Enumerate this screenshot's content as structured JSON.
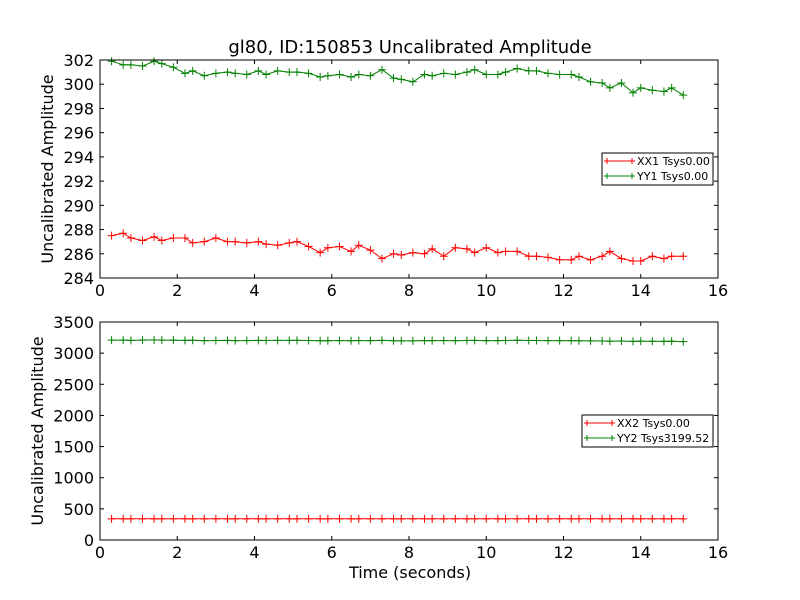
{
  "figure_title": "gl80, ID:150853 Uncalibrated Amplitude",
  "chart_data": [
    {
      "type": "line",
      "title": "gl80, ID:150853 Uncalibrated Amplitude",
      "xlabel": "",
      "ylabel": "Uncalibrated Amplitude",
      "xlim": [
        0,
        16
      ],
      "ylim": [
        284,
        302
      ],
      "xticks": [
        0,
        2,
        4,
        6,
        8,
        10,
        12,
        14,
        16
      ],
      "yticks": [
        284,
        286,
        288,
        290,
        292,
        294,
        296,
        298,
        300,
        302
      ],
      "legend_position": "center-right",
      "x": [
        0.3,
        0.6,
        0.8,
        1.1,
        1.4,
        1.6,
        1.9,
        2.2,
        2.4,
        2.7,
        3.0,
        3.3,
        3.5,
        3.8,
        4.1,
        4.3,
        4.6,
        4.9,
        5.1,
        5.4,
        5.7,
        5.9,
        6.2,
        6.5,
        6.7,
        7.0,
        7.3,
        7.6,
        7.8,
        8.1,
        8.4,
        8.6,
        8.9,
        9.2,
        9.5,
        9.7,
        10.0,
        10.3,
        10.5,
        10.8,
        11.1,
        11.3,
        11.6,
        11.9,
        12.2,
        12.4,
        12.7,
        13.0,
        13.2,
        13.5,
        13.8,
        14.0,
        14.3,
        14.6,
        14.8,
        15.1
      ],
      "series": [
        {
          "name": "XX1 Tsys0.00",
          "color": "#ff0000",
          "values": [
            287.5,
            287.7,
            287.3,
            287.1,
            287.4,
            287.1,
            287.3,
            287.3,
            286.9,
            287.0,
            287.3,
            287.0,
            287.0,
            286.9,
            287.0,
            286.8,
            286.7,
            286.9,
            287.0,
            286.6,
            286.1,
            286.5,
            286.6,
            286.2,
            286.7,
            286.3,
            285.6,
            286.0,
            285.9,
            286.1,
            286.0,
            286.4,
            285.8,
            286.5,
            286.4,
            286.1,
            286.5,
            286.1,
            286.2,
            286.2,
            285.8,
            285.8,
            285.7,
            285.5,
            285.5,
            285.8,
            285.5,
            285.8,
            286.2,
            285.6,
            285.4,
            285.4,
            285.8,
            285.6,
            285.8,
            285.8
          ]
        },
        {
          "name": "YY1 Tsys0.00",
          "color": "#008000",
          "values": [
            301.9,
            301.6,
            301.6,
            301.5,
            301.9,
            301.7,
            301.4,
            300.9,
            301.1,
            300.7,
            300.9,
            301.0,
            300.9,
            300.8,
            301.1,
            300.8,
            301.1,
            301.0,
            301.0,
            300.9,
            300.6,
            300.7,
            300.8,
            300.6,
            300.8,
            300.7,
            301.2,
            300.5,
            300.4,
            300.2,
            300.8,
            300.7,
            300.9,
            300.8,
            301.0,
            301.2,
            300.8,
            300.8,
            301.0,
            301.3,
            301.1,
            301.1,
            300.9,
            300.8,
            300.8,
            300.6,
            300.2,
            300.1,
            299.7,
            300.1,
            299.3,
            299.7,
            299.5,
            299.4,
            299.7,
            299.1
          ]
        }
      ]
    },
    {
      "type": "line",
      "title": "",
      "xlabel": "Time (seconds)",
      "ylabel": "Uncalibrated Amplitude",
      "xlim": [
        0,
        16
      ],
      "ylim": [
        0,
        3500
      ],
      "xticks": [
        0,
        2,
        4,
        6,
        8,
        10,
        12,
        14,
        16
      ],
      "yticks": [
        0,
        500,
        1000,
        1500,
        2000,
        2500,
        3000,
        3500
      ],
      "legend_position": "center-right",
      "x": [
        0.3,
        0.6,
        0.8,
        1.1,
        1.4,
        1.6,
        1.9,
        2.2,
        2.4,
        2.7,
        3.0,
        3.3,
        3.5,
        3.8,
        4.1,
        4.3,
        4.6,
        4.9,
        5.1,
        5.4,
        5.7,
        5.9,
        6.2,
        6.5,
        6.7,
        7.0,
        7.3,
        7.6,
        7.8,
        8.1,
        8.4,
        8.6,
        8.9,
        9.2,
        9.5,
        9.7,
        10.0,
        10.3,
        10.5,
        10.8,
        11.1,
        11.3,
        11.6,
        11.9,
        12.2,
        12.4,
        12.7,
        13.0,
        13.2,
        13.5,
        13.8,
        14.0,
        14.3,
        14.6,
        14.8,
        15.1
      ],
      "series": [
        {
          "name": "XX2 Tsys0.00",
          "color": "#ff0000",
          "values": [
            340,
            340,
            340,
            340,
            340,
            340,
            340,
            340,
            340,
            340,
            340,
            340,
            340,
            340,
            340,
            340,
            340,
            340,
            340,
            340,
            340,
            340,
            340,
            340,
            340,
            340,
            340,
            340,
            340,
            340,
            340,
            340,
            340,
            340,
            340,
            340,
            340,
            340,
            340,
            340,
            340,
            340,
            340,
            340,
            340,
            340,
            340,
            340,
            340,
            340,
            340,
            340,
            340,
            340,
            340,
            340
          ]
        },
        {
          "name": "YY2 Tsys3199.52",
          "color": "#008000",
          "values": [
            3210,
            3210,
            3205,
            3210,
            3212,
            3210,
            3208,
            3205,
            3206,
            3200,
            3203,
            3205,
            3200,
            3202,
            3205,
            3203,
            3205,
            3204,
            3205,
            3203,
            3199,
            3200,
            3201,
            3199,
            3202,
            3200,
            3204,
            3198,
            3197,
            3196,
            3201,
            3200,
            3202,
            3200,
            3203,
            3204,
            3200,
            3201,
            3203,
            3206,
            3203,
            3203,
            3201,
            3200,
            3200,
            3198,
            3196,
            3195,
            3192,
            3195,
            3188,
            3192,
            3190,
            3189,
            3192,
            3185
          ]
        }
      ]
    }
  ]
}
